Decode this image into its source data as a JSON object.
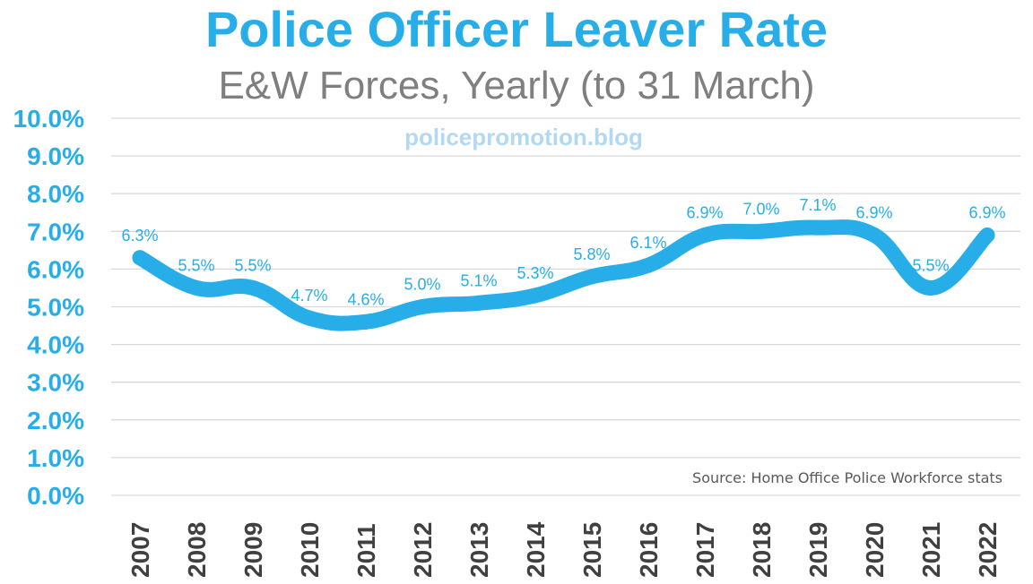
{
  "chart_data": {
    "type": "line",
    "title": "Police Officer Leaver Rate",
    "subtitle": "E&W Forces, Yearly (to 31 March)",
    "watermark": "policepromotion.blog",
    "source": "Source: Home Office Police Workforce stats",
    "xlabel": "",
    "ylabel": "",
    "ylim": [
      0,
      10
    ],
    "grid": true,
    "legend": "none",
    "categories": [
      "2007",
      "2008",
      "2009",
      "2010",
      "2011",
      "2012",
      "2013",
      "2014",
      "2015",
      "2016",
      "2017",
      "2018",
      "2019",
      "2020",
      "2021",
      "2022"
    ],
    "y_ticks": [
      "0.0%",
      "1.0%",
      "2.0%",
      "3.0%",
      "4.0%",
      "5.0%",
      "6.0%",
      "7.0%",
      "8.0%",
      "9.0%",
      "10.0%"
    ],
    "series": [
      {
        "name": "Leaver Rate",
        "values": [
          6.3,
          5.5,
          5.5,
          4.7,
          4.6,
          5.0,
          5.1,
          5.3,
          5.8,
          6.1,
          6.9,
          7.0,
          7.1,
          6.9,
          5.5,
          6.9
        ],
        "labels": [
          "6.3%",
          "5.5%",
          "5.5%",
          "4.7%",
          "4.6%",
          "5.0%",
          "5.1%",
          "5.3%",
          "5.8%",
          "6.1%",
          "6.9%",
          "7.0%",
          "7.1%",
          "6.9%",
          "5.5%",
          "6.9%"
        ]
      }
    ],
    "colors": {
      "title": "#27aee9",
      "subtitle": "#7f7f7f",
      "line": "#27aee9",
      "axis_labels": "#27aee9",
      "data_labels": "#27aee9",
      "x_labels": "#404040",
      "grid": "#d9d9d9",
      "watermark": "#b3d9f2",
      "source": "#595959"
    }
  }
}
